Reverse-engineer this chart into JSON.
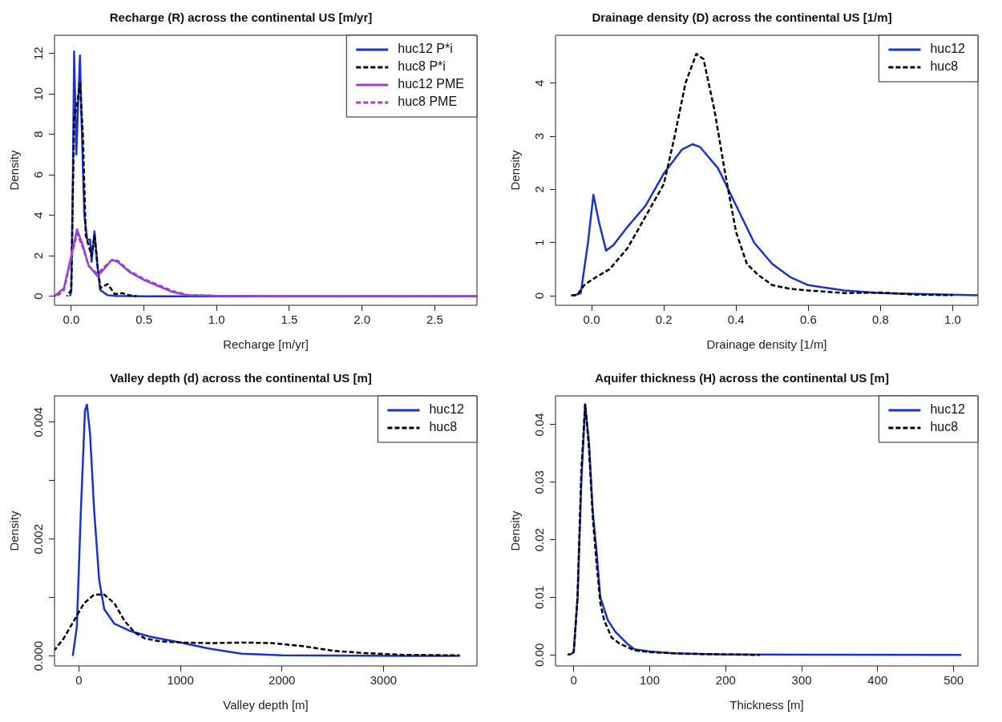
{
  "chart_data": [
    {
      "type": "line",
      "title": "Recharge (R) across the continental US [m/yr]",
      "xlabel": "Recharge [m/yr]",
      "ylabel": "Density",
      "xlim": [
        -0.115,
        2.79
      ],
      "ylim": [
        -0.45,
        12.9
      ],
      "xticks": [
        {
          "value": 0,
          "label": "0.0"
        },
        {
          "value": 0.5,
          "label": "0.5"
        },
        {
          "value": 1,
          "label": "1.0"
        },
        {
          "value": 1.5,
          "label": "1.5"
        },
        {
          "value": 2,
          "label": "2.0"
        },
        {
          "value": 2.5,
          "label": "2.5"
        }
      ],
      "yticks": [
        0,
        2,
        4,
        6,
        8,
        10,
        12
      ],
      "grid": false,
      "legend": "top right",
      "marker": "none",
      "series": [
        {
          "name": "huc12 P*i",
          "color": "#1a33cc",
          "line_style": "solid",
          "x": [
            -0.01,
            0,
            0.01,
            0.02,
            0.035,
            0.05,
            0.06,
            0.07,
            0.09,
            0.11,
            0.13,
            0.14,
            0.16,
            0.18,
            0.2,
            0.25,
            0.3,
            0.5,
            2.79
          ],
          "values": [
            0,
            0.2,
            5,
            12.1,
            7,
            10,
            11.9,
            9,
            4,
            2.8,
            2.8,
            1.7,
            3.2,
            1.5,
            0.3,
            0.05,
            0.02,
            0,
            0
          ]
        },
        {
          "name": "huc8 P*i",
          "color": "#000000",
          "line_style": "dashed",
          "x": [
            -0.03,
            0,
            0.02,
            0.04,
            0.06,
            0.08,
            0.1,
            0.12,
            0.14,
            0.16,
            0.18,
            0.2,
            0.25,
            0.27,
            0.3,
            0.35,
            0.4,
            0.45
          ],
          "values": [
            0,
            0.3,
            8.8,
            9.5,
            10.5,
            8,
            3,
            2.5,
            2,
            3,
            1.6,
            0.4,
            0.6,
            0.4,
            0.1,
            0.15,
            0.05,
            0
          ]
        },
        {
          "name": "huc12 PME",
          "color": "#9b3fdb",
          "line_style": "solid",
          "x": [
            -0.115,
            -0.05,
            0,
            0.04,
            0.08,
            0.12,
            0.18,
            0.22,
            0.28,
            0.32,
            0.4,
            0.5,
            0.6,
            0.7,
            0.8,
            1,
            1.5,
            2.79
          ],
          "values": [
            0,
            0.4,
            2,
            3.3,
            2.5,
            1.5,
            1,
            1.3,
            1.8,
            1.7,
            1.2,
            0.8,
            0.5,
            0.2,
            0.05,
            0.02,
            0,
            0
          ]
        },
        {
          "name": "huc8 PME",
          "color": "#9b3fdb",
          "line_style": "dashed",
          "x": [
            -0.1,
            -0.05,
            0,
            0.04,
            0.08,
            0.12,
            0.18,
            0.22,
            0.28,
            0.32,
            0.4,
            0.5,
            0.6,
            0.7,
            0.8,
            1,
            1.5,
            2.79
          ],
          "values": [
            0,
            0.3,
            1.9,
            3.1,
            2.4,
            1.5,
            1.1,
            1.4,
            1.8,
            1.75,
            1.25,
            0.85,
            0.55,
            0.25,
            0.06,
            0.02,
            0,
            0
          ]
        }
      ]
    },
    {
      "type": "line",
      "title": "Drainage density (D) across the continental US [1/m]",
      "xlabel": "Drainage density [1/m]",
      "ylabel": "Density",
      "xlim": [
        -0.1,
        1.07
      ],
      "ylim": [
        -0.18,
        4.9
      ],
      "xticks": [
        {
          "value": 0,
          "label": "0.0"
        },
        {
          "value": 0.2,
          "label": "0.2"
        },
        {
          "value": 0.4,
          "label": "0.4"
        },
        {
          "value": 0.6,
          "label": "0.6"
        },
        {
          "value": 0.8,
          "label": "0.8"
        },
        {
          "value": 1,
          "label": "1.0"
        }
      ],
      "yticks": [
        0,
        1,
        2,
        3,
        4
      ],
      "grid": false,
      "legend": "top right",
      "marker": "none",
      "series": [
        {
          "name": "huc12",
          "color": "#1a33cc",
          "line_style": "solid",
          "x": [
            -0.05,
            -0.03,
            -0.01,
            0.005,
            0.02,
            0.04,
            0.06,
            0.1,
            0.15,
            0.2,
            0.25,
            0.28,
            0.3,
            0.35,
            0.4,
            0.45,
            0.5,
            0.55,
            0.6,
            0.7,
            0.8,
            1.07
          ],
          "values": [
            0,
            0.05,
            1,
            1.9,
            1.4,
            0.85,
            0.95,
            1.3,
            1.7,
            2.3,
            2.75,
            2.85,
            2.8,
            2.4,
            1.7,
            1,
            0.6,
            0.35,
            0.2,
            0.1,
            0.05,
            0.01
          ]
        },
        {
          "name": "huc8",
          "color": "#000000",
          "line_style": "dashed",
          "x": [
            -0.06,
            -0.04,
            -0.02,
            0,
            0.05,
            0.1,
            0.15,
            0.2,
            0.23,
            0.26,
            0.29,
            0.31,
            0.34,
            0.37,
            0.4,
            0.43,
            0.46,
            0.5,
            0.55,
            0.6,
            0.7,
            0.8,
            0.9,
            1
          ],
          "values": [
            0,
            0.02,
            0.2,
            0.3,
            0.5,
            0.9,
            1.5,
            2.1,
            3,
            4,
            4.55,
            4.45,
            3.5,
            2.3,
            1.2,
            0.6,
            0.4,
            0.2,
            0.13,
            0.1,
            0.05,
            0.06,
            0.02,
            0.01
          ]
        }
      ]
    },
    {
      "type": "line",
      "title": "Valley depth (d) across the continental US [m]",
      "xlabel": "Valley depth [m]",
      "ylabel": "Density",
      "xlim": [
        -240,
        3920
      ],
      "ylim": [
        -0.00017,
        0.00445
      ],
      "xticks": [
        0,
        1000,
        2000,
        3000
      ],
      "yticks": [
        {
          "value": 0,
          "label": "0.000"
        },
        {
          "value": 0.001,
          "label": null
        },
        {
          "value": 0.002,
          "label": "0.002"
        },
        {
          "value": 0.003,
          "label": null
        },
        {
          "value": 0.004,
          "label": "0.004"
        }
      ],
      "grid": false,
      "legend": "top right",
      "marker": "none",
      "series": [
        {
          "name": "huc12",
          "color": "#1a33cc",
          "line_style": "solid",
          "x": [
            -60,
            -20,
            20,
            60,
            80,
            110,
            150,
            200,
            250,
            350,
            500,
            700,
            1000,
            1300,
            1600,
            2000,
            3750
          ],
          "values": [
            0,
            0.0005,
            0.0025,
            0.0042,
            0.0043,
            0.0038,
            0.0025,
            0.0013,
            0.0008,
            0.00055,
            0.00043,
            0.00033,
            0.00023,
            0.00012,
            4e-05,
            1e-05,
            0
          ]
        },
        {
          "name": "huc8",
          "color": "#000000",
          "line_style": "dashed",
          "x": [
            -240,
            -150,
            -50,
            50,
            150,
            250,
            350,
            450,
            550,
            650,
            800,
            1000,
            1300,
            1600,
            1900,
            2200,
            2500,
            2800,
            3200,
            3750
          ],
          "values": [
            0.0001,
            0.0003,
            0.0006,
            0.0009,
            0.00105,
            0.00105,
            0.0009,
            0.0006,
            0.0004,
            0.0003,
            0.00025,
            0.00023,
            0.00022,
            0.00023,
            0.00022,
            0.00017,
            9e-05,
            5e-05,
            2e-05,
            1e-05
          ]
        }
      ]
    },
    {
      "type": "line",
      "title": "Aquifer thickness (H) across the continental US [m]",
      "xlabel": "Thickness [m]",
      "ylabel": "Density",
      "xlim": [
        -24,
        532
      ],
      "ylim": [
        -0.0019,
        0.045
      ],
      "xticks": [
        0,
        100,
        200,
        300,
        400,
        500
      ],
      "yticks": [
        {
          "value": 0,
          "label": "0.00"
        },
        {
          "value": 0.01,
          "label": "0.01"
        },
        {
          "value": 0.02,
          "label": "0.02"
        },
        {
          "value": 0.03,
          "label": "0.03"
        },
        {
          "value": 0.04,
          "label": "0.04"
        }
      ],
      "grid": false,
      "legend": "top right",
      "marker": "none",
      "series": [
        {
          "name": "huc12",
          "color": "#1a33cc",
          "line_style": "solid",
          "x": [
            -5,
            0,
            5,
            10,
            15,
            20,
            25,
            30,
            35,
            45,
            55,
            70,
            80,
            100,
            130,
            200,
            510
          ],
          "values": [
            0,
            0.0005,
            0.01,
            0.03,
            0.0435,
            0.037,
            0.025,
            0.018,
            0.01,
            0.006,
            0.004,
            0.002,
            0.001,
            0.0006,
            0.0003,
            0.0001,
            0
          ]
        },
        {
          "name": "huc8",
          "color": "#000000",
          "line_style": "dashed",
          "x": [
            -8,
            0,
            5,
            10,
            15,
            20,
            25,
            30,
            35,
            40,
            50,
            60,
            80,
            100,
            150,
            200,
            245
          ],
          "values": [
            0,
            0.0005,
            0.01,
            0.032,
            0.0435,
            0.036,
            0.024,
            0.016,
            0.009,
            0.006,
            0.003,
            0.002,
            0.0008,
            0.0005,
            0.0002,
            0.0001,
            0
          ]
        }
      ]
    }
  ]
}
